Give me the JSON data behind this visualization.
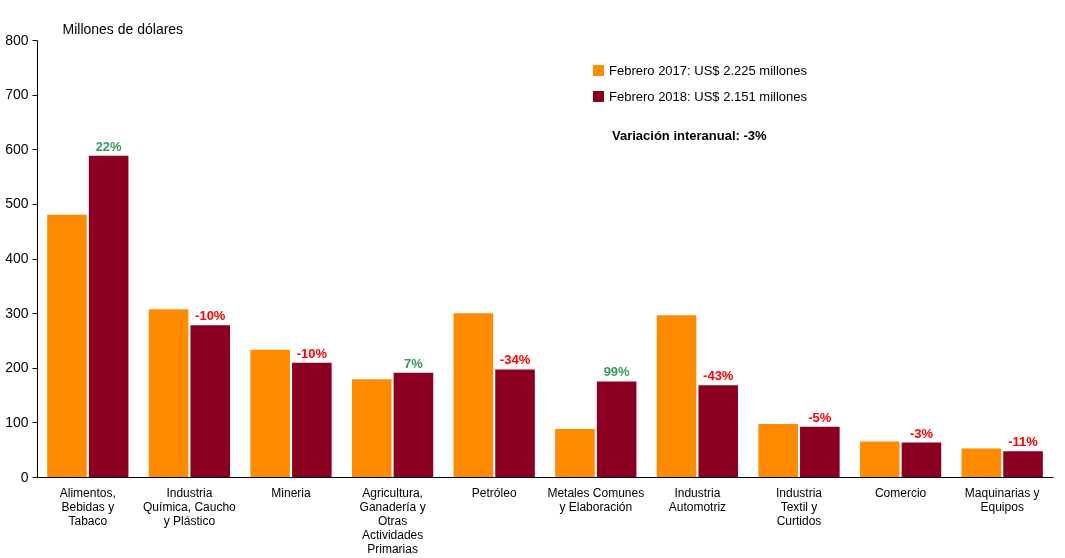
{
  "chart_data": {
    "type": "bar",
    "ylabel": "Millones de dólares",
    "categories": [
      "Alimentos, Bebidas y Tabaco",
      "Industria Química, Caucho y Plástico",
      "Mineria",
      "Agricultura, Ganadería y Otras Actividades Primarias",
      "Petróleo",
      "Metales Comunes y Elaboración",
      "Industria Automotriz",
      "Industria Textil y Curtidos",
      "Comercio",
      "Maquinarias y Equipos"
    ],
    "series": [
      {
        "name": "Febrero 2017: US$ 2.225 millones",
        "color": "#ff8c00",
        "values": [
          480,
          307,
          233,
          179,
          300,
          88,
          296,
          97,
          65,
          52
        ]
      },
      {
        "name": "Febrero 2018: US$ 2.151 millones",
        "color": "#8b0020",
        "values": [
          588,
          278,
          209,
          191,
          197,
          175,
          168,
          92,
          63,
          47
        ]
      }
    ],
    "ylim": [
      0,
      800
    ],
    "yticks": [
      0,
      100,
      200,
      300,
      400,
      500,
      600,
      700,
      800
    ],
    "grid": false,
    "legend": "top right",
    "annotations": [
      "Variación interanual: -3%",
      {
        "text": "22%",
        "x": "Alimentos, Bebidas y Tabaco",
        "y": 588
      },
      {
        "text": "-10%",
        "x": "Industria Química, Caucho y Plástico",
        "y": 278
      },
      {
        "text": "-10%",
        "x": "Mineria",
        "y": 209
      },
      {
        "text": "7%",
        "x": "Agricultura, Ganadería y Otras Actividades Primarias",
        "y": 191
      },
      {
        "text": "-34%",
        "x": "Petróleo",
        "y": 197
      },
      {
        "text": "99%",
        "x": "Metales Comunes y Elaboración",
        "y": 175
      },
      {
        "text": "-43%",
        "x": "Industria Automotriz",
        "y": 168
      },
      {
        "text": "-5%",
        "x": "Industria Textil y Curtidos",
        "y": 92
      },
      {
        "text": "-3%",
        "x": "Comercio",
        "y": 63
      },
      {
        "text": "-11%",
        "x": "Maquinarias y Equipos",
        "y": 47
      }
    ]
  }
}
